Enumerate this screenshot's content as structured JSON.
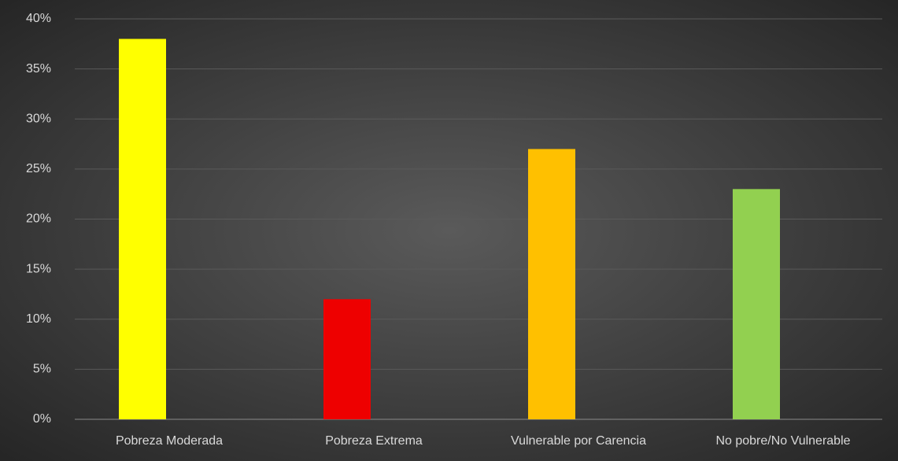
{
  "chart_data": {
    "type": "bar",
    "categories": [
      "Pobreza Moderada",
      "Pobreza Extrema",
      "Vulnerable por Carencia",
      "No pobre/No Vulnerable"
    ],
    "values": [
      38,
      12,
      27,
      23
    ],
    "colors": [
      "#ffff00",
      "#ee0000",
      "#ffc000",
      "#92d050"
    ],
    "ylim": [
      0,
      40
    ],
    "yticks": [
      {
        "value": 0,
        "label": "0%"
      },
      {
        "value": 5,
        "label": "5%"
      },
      {
        "value": 10,
        "label": "10%"
      },
      {
        "value": 15,
        "label": "15%"
      },
      {
        "value": 20,
        "label": "20%"
      },
      {
        "value": 25,
        "label": "25%"
      },
      {
        "value": 30,
        "label": "30%"
      },
      {
        "value": 35,
        "label": "35%"
      },
      {
        "value": 40,
        "label": "40%"
      }
    ],
    "grid": true
  }
}
